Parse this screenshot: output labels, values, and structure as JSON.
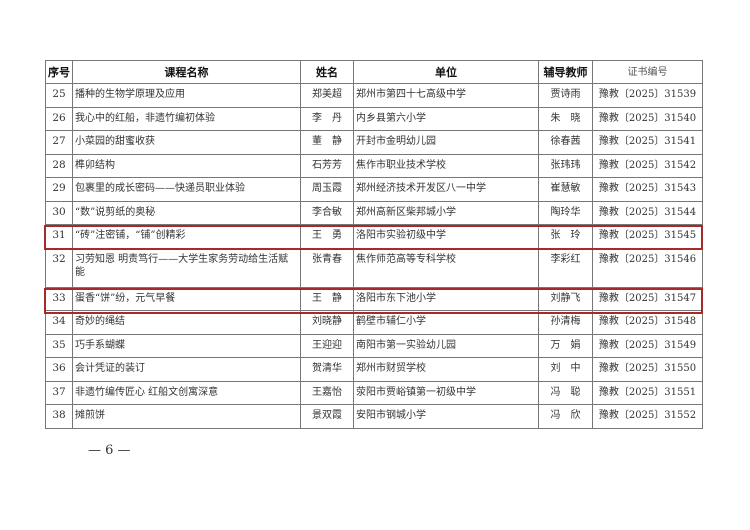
{
  "table": {
    "headers": [
      "序号",
      "课程名称",
      "姓名",
      "单位",
      "辅导教师",
      "证书编号"
    ],
    "rows": [
      {
        "no": "25",
        "course": "播种的生物学原理及应用",
        "name": "郑美超",
        "unit": "郑州市第四十七高级中学",
        "tutor": "贾诗雨",
        "cert": "豫教〔2025〕31539"
      },
      {
        "no": "26",
        "course": "我心中的红船，非遗竹编初体验",
        "name": "李　丹",
        "unit": "内乡县第六小学",
        "tutor": "朱　晓",
        "cert": "豫教〔2025〕31540"
      },
      {
        "no": "27",
        "course": "小菜园的甜蜜收获",
        "name": "董　静",
        "unit": "开封市金明幼儿园",
        "tutor": "徐春茜",
        "cert": "豫教〔2025〕31541"
      },
      {
        "no": "28",
        "course": "榫卯结构",
        "name": "石芳芳",
        "unit": "焦作市职业技术学校",
        "tutor": "张玮玮",
        "cert": "豫教〔2025〕31542"
      },
      {
        "no": "29",
        "course": "包裹里的成长密码——快递员职业体验",
        "name": "周玉霞",
        "unit": "郑州经济技术开发区八一中学",
        "tutor": "崔慧敏",
        "cert": "豫教〔2025〕31543"
      },
      {
        "no": "30",
        "course": "“数”说剪纸的奥秘",
        "name": "李合敏",
        "unit": "郑州高新区柴邦城小学",
        "tutor": "陶玲华",
        "cert": "豫教〔2025〕31544"
      },
      {
        "no": "31",
        "course": "“砖”注密铺，“铺”创精彩",
        "name": "王　勇",
        "unit": "洛阳市实验初级中学",
        "tutor": "张　玲",
        "cert": "豫教〔2025〕31545",
        "highlight": true
      },
      {
        "no": "32",
        "course": "习劳知恩 明责笃行——大学生家务劳动给生活赋能",
        "name": "张青春",
        "unit": "焦作师范高等专科学校",
        "tutor": "李彩红",
        "cert": "豫教〔2025〕31546"
      },
      {
        "no": "33",
        "course": "蛋香“饼”纷，元气早餐",
        "name": "王　静",
        "unit": "洛阳市东下池小学",
        "tutor": "刘静飞",
        "cert": "豫教〔2025〕31547",
        "highlight": true
      },
      {
        "no": "34",
        "course": "奇妙的绳结",
        "name": "刘晓静",
        "unit": "鹤壁市辅仁小学",
        "tutor": "孙清梅",
        "cert": "豫教〔2025〕31548"
      },
      {
        "no": "35",
        "course": "巧手系蝴蝶",
        "name": "王迎迎",
        "unit": "南阳市第一实验幼儿园",
        "tutor": "万　娟",
        "cert": "豫教〔2025〕31549"
      },
      {
        "no": "36",
        "course": "会计凭证的装订",
        "name": "贺清华",
        "unit": "郑州市财贸学校",
        "tutor": "刘　中",
        "cert": "豫教〔2025〕31550"
      },
      {
        "no": "37",
        "course": "非遗竹编传匠心 红船文创寓深意",
        "name": "王嘉怡",
        "unit": "荥阳市贾峪镇第一初级中学",
        "tutor": "冯　聪",
        "cert": "豫教〔2025〕31551"
      },
      {
        "no": "38",
        "course": "摊煎饼",
        "name": "景双霞",
        "unit": "安阳市钢城小学",
        "tutor": "冯　欣",
        "cert": "豫教〔2025〕31552"
      }
    ]
  },
  "highlight_color": "#a52a2a",
  "page_number": "— 6 —"
}
